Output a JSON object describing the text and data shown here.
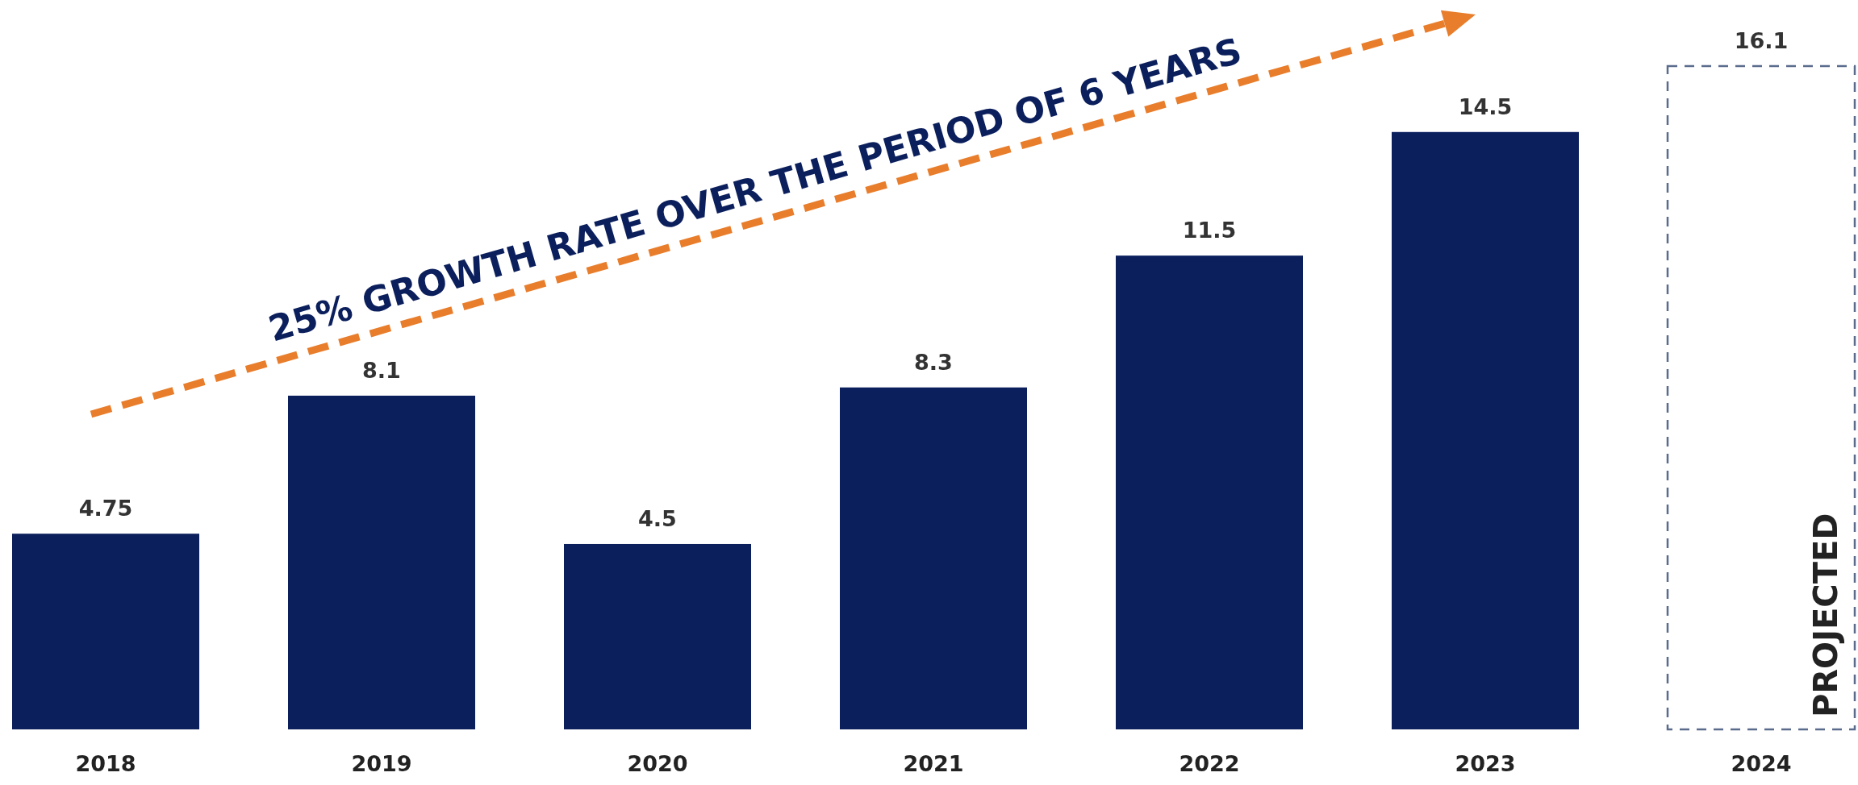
{
  "chart_data": {
    "type": "bar",
    "categories": [
      "2018",
      "2019",
      "2020",
      "2021",
      "2022",
      "2023",
      "2024"
    ],
    "stacked": true,
    "data_labels": true,
    "series": [
      {
        "color": "#0b1f5c",
        "values": [
          4.75,
          8.1,
          4.5,
          8.3,
          11.5,
          14.5,
          null
        ]
      },
      {
        "color": "#5a6b8c",
        "line_style": "dashed",
        "values": [
          null,
          null,
          null,
          null,
          null,
          null,
          16.1
        ]
      }
    ],
    "annotations": [
      "25% GROWTH RATE OVER THE PERIOD OF 6 YEARS",
      "PROJECTED"
    ]
  }
}
